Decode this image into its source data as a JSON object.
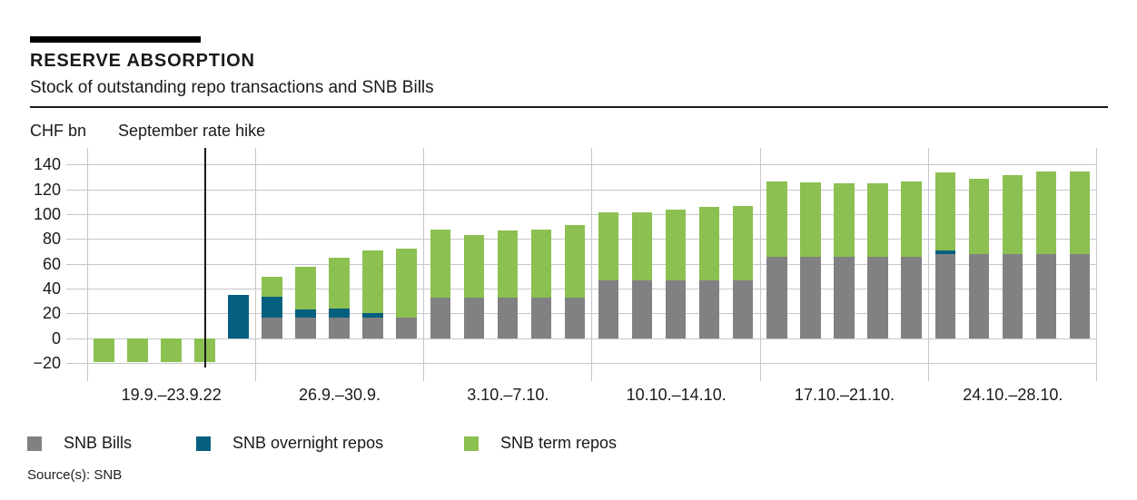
{
  "header": {
    "title": "RESERVE ABSORPTION",
    "subtitle": "Stock of outstanding repo transactions and SNB Bills"
  },
  "axis_unit": "CHF bn",
  "annotation_label": "September rate hike",
  "source": "Source(s): SNB",
  "colors": {
    "bills_gray": "#818184",
    "overnight_teal": "#065F7E",
    "term_green": "#8CC051",
    "gridline": "#c7c7ca",
    "annotation_line": "#1a1a1a"
  },
  "chart_data": {
    "type": "bar",
    "stacked": true,
    "title": "RESERVE ABSORPTION",
    "subtitle": "Stock of outstanding repo transactions and SNB Bills",
    "ylabel": "CHF bn",
    "ylim": [
      -20,
      140
    ],
    "yticks": [
      140,
      120,
      100,
      80,
      60,
      40,
      20,
      0,
      -20
    ],
    "ytick_labels": [
      "140",
      "120",
      "100",
      "80",
      "60",
      "40",
      "20",
      "0",
      "−20"
    ],
    "grid": true,
    "legend_position": "bottom",
    "annotation": "September rate hike",
    "categories": [
      "19.9.–23.9.22",
      "26.9.–30.9.",
      "3.10.–7.10.",
      "10.10.–14.10.",
      "17.10.–21.10.",
      "24.10.–28.10."
    ],
    "days_per_group": 5,
    "series": [
      {
        "name": "SNB Bills",
        "color": "#818184",
        "values": [
          0,
          0,
          0,
          0,
          0,
          17,
          17,
          17,
          17,
          17,
          33,
          33,
          33,
          33,
          33,
          47,
          47,
          47,
          47,
          47,
          66,
          66,
          66,
          66,
          66,
          68.5,
          68,
          68,
          68,
          68
        ]
      },
      {
        "name": "SNB overnight repos",
        "color": "#065F7E",
        "values": [
          0,
          0,
          0,
          0,
          35.5,
          17,
          7,
          7.5,
          4,
          0,
          0,
          0,
          0,
          0,
          0,
          0,
          0,
          0,
          0,
          0,
          0,
          0,
          0,
          0,
          0,
          3,
          0,
          0,
          0,
          0
        ]
      },
      {
        "name": "SNB term repos",
        "color": "#8CC051",
        "values": [
          -19,
          -19,
          -19,
          -19,
          0,
          16,
          34,
          41,
          50.5,
          56,
          55,
          51,
          54,
          55,
          59,
          55,
          55,
          57,
          59,
          60,
          61,
          60,
          59,
          59,
          61,
          62.5,
          61,
          64,
          67,
          67
        ]
      }
    ]
  }
}
